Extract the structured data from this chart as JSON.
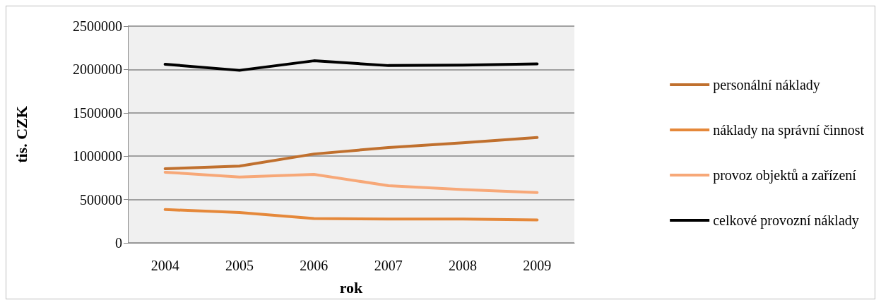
{
  "chart_data": {
    "type": "line",
    "xlabel": "rok",
    "ylabel": "tis. CZK",
    "categories": [
      "2004",
      "2005",
      "2006",
      "2007",
      "2008",
      "2009"
    ],
    "series": [
      {
        "name": "personální náklady",
        "color": "#c0702e",
        "values": [
          855000,
          885000,
          1025000,
          1100000,
          1155000,
          1215000
        ]
      },
      {
        "name": "náklady na správní činnost",
        "color": "#e5883a",
        "values": [
          385000,
          350000,
          280000,
          275000,
          275000,
          265000
        ]
      },
      {
        "name": "provoz objektů a zařízení",
        "color": "#f7a878",
        "values": [
          815000,
          760000,
          790000,
          660000,
          615000,
          580000
        ]
      },
      {
        "name": "celkové provozní náklady",
        "color": "#000000",
        "values": [
          2060000,
          1990000,
          2100000,
          2045000,
          2050000,
          2065000
        ]
      }
    ],
    "ylim": [
      0,
      2500000
    ],
    "yticks": [
      0,
      500000,
      1000000,
      1500000,
      2000000,
      2500000
    ],
    "grid": "y",
    "legend": "right",
    "marker": "none",
    "line_style": "solid"
  }
}
